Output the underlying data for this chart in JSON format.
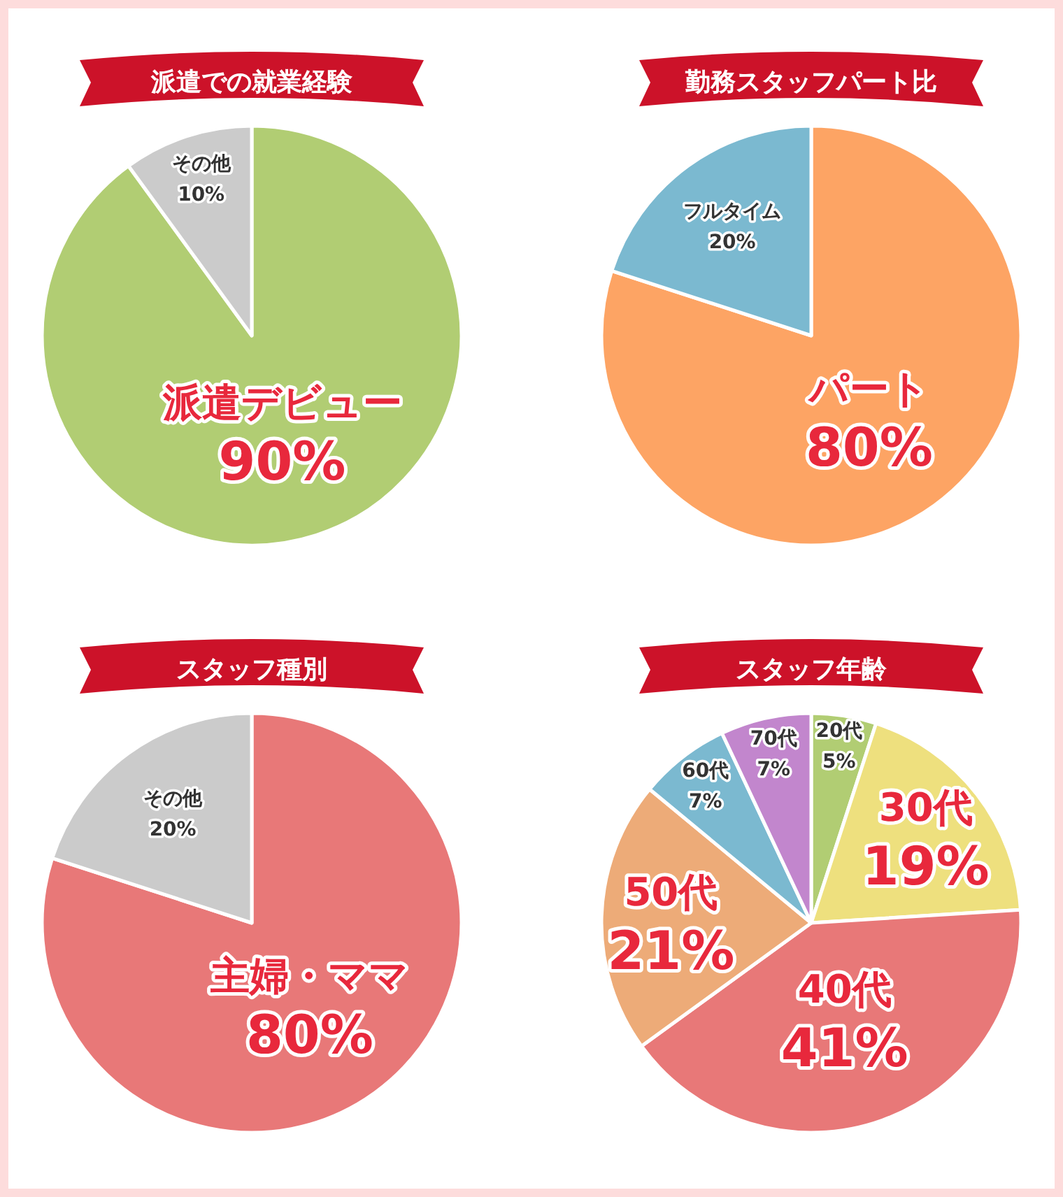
{
  "chart_data": [
    {
      "type": "pie",
      "title": "派遣での就業経験",
      "categories": [
        "派遣デビュー",
        "その他"
      ],
      "values": [
        90,
        10
      ],
      "value_labels": [
        "90%",
        "10%"
      ],
      "colors": [
        "#b1cd73",
        "#cbcbcb"
      ]
    },
    {
      "type": "pie",
      "title": "勤務スタッフパート比",
      "categories": [
        "パート",
        "フルタイム"
      ],
      "values": [
        80,
        20
      ],
      "value_labels": [
        "80%",
        "20%"
      ],
      "colors": [
        "#fda464",
        "#7bb9d0"
      ]
    },
    {
      "type": "pie",
      "title": "スタッフ種別",
      "categories": [
        "主婦・ママ",
        "その他"
      ],
      "values": [
        80,
        20
      ],
      "value_labels": [
        "80%",
        "20%"
      ],
      "colors": [
        "#e87878",
        "#cbcbcb"
      ]
    },
    {
      "type": "pie",
      "title": "スタッフ年齢",
      "categories": [
        "20代",
        "30代",
        "40代",
        "50代",
        "60代",
        "70代"
      ],
      "values": [
        5,
        19,
        41,
        21,
        7,
        7
      ],
      "value_labels": [
        "5%",
        "19%",
        "41%",
        "21%",
        "7%",
        "7%"
      ],
      "colors": [
        "#b1cd73",
        "#eee07e",
        "#e87878",
        "#edab78",
        "#7bb9d0",
        "#c286cd"
      ]
    }
  ]
}
